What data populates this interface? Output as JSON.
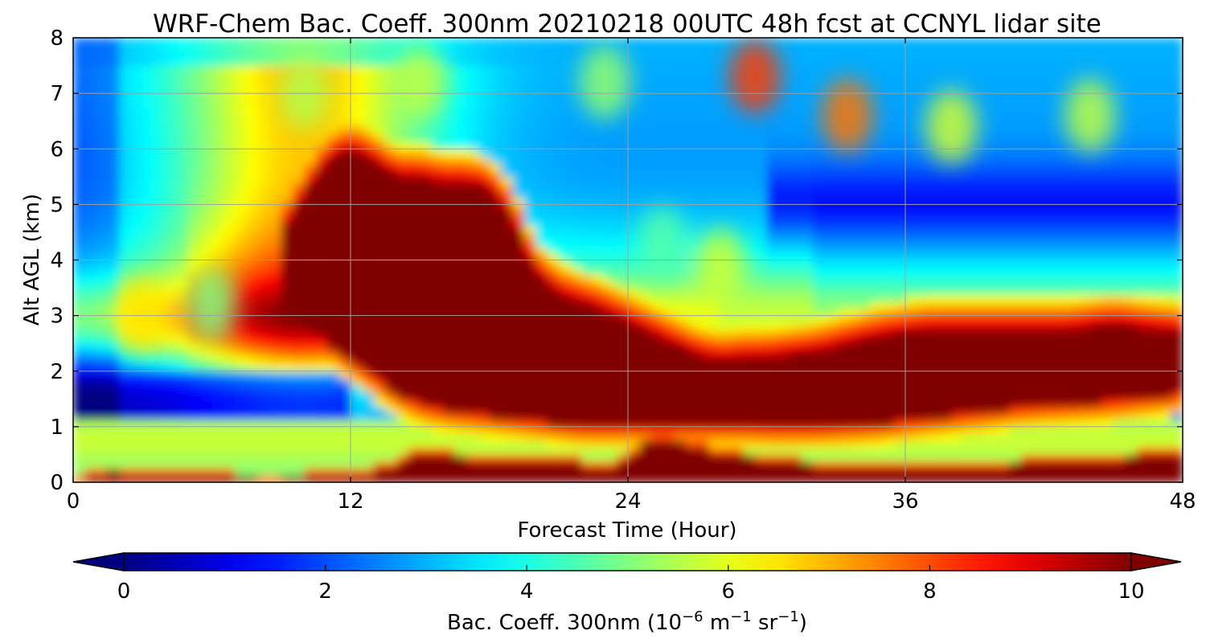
{
  "chart_data": {
    "type": "heatmap",
    "title": "WRF-Chem Bac. Coeff. 300nm  20210218 00UTC 48h fcst at CCNYL lidar site",
    "xlabel": "Forecast Time (Hour)",
    "ylabel": "Alt AGL (km)",
    "xlim": [
      0,
      48
    ],
    "ylim": [
      0,
      8
    ],
    "x_ticks": [
      "0",
      "12",
      "24",
      "36",
      "48"
    ],
    "y_ticks": [
      "0",
      "1",
      "2",
      "3",
      "4",
      "5",
      "6",
      "7",
      "8"
    ],
    "grid": true,
    "colormap": "jet",
    "colorbar": {
      "orientation": "horizontal",
      "placement": "bottom",
      "range": [
        0,
        10
      ],
      "extend": "both",
      "ticks": [
        "0",
        "2",
        "4",
        "6",
        "8",
        "10"
      ],
      "label_prefix": "Bac. Coeff. 300nm  (10",
      "label_exp1": "−6",
      "label_mid": " m",
      "label_exp2": "−1",
      "label_mid2": " sr",
      "label_exp3": "−1",
      "label_suffix": ")"
    },
    "features": {
      "sfc_x": [
        0,
        1,
        2,
        3,
        4,
        5,
        6,
        7,
        8,
        9,
        10,
        11,
        12,
        13,
        14,
        15,
        16,
        17,
        18,
        19,
        20,
        21,
        22,
        23,
        24,
        25,
        26,
        27,
        28,
        29,
        30,
        31,
        32,
        33,
        34,
        35,
        36,
        37,
        38,
        39,
        40,
        41,
        42,
        43,
        44,
        45,
        46,
        47,
        48
      ],
      "sfc_top": [
        0.02,
        0.15,
        0.2,
        0.12,
        0.1,
        0.09,
        0.08,
        0.07,
        0.06,
        0.06,
        0.07,
        0.08,
        0.1,
        0.18,
        0.35,
        0.55,
        0.55,
        0.4,
        0.42,
        0.42,
        0.4,
        0.38,
        0.3,
        0.28,
        0.35,
        0.8,
        0.72,
        0.6,
        0.5,
        0.45,
        0.4,
        0.35,
        0.3,
        0.28,
        0.25,
        0.24,
        0.24,
        0.25,
        0.26,
        0.28,
        0.3,
        0.32,
        0.35,
        0.38,
        0.4,
        0.42,
        0.45,
        0.5,
        0.55
      ],
      "plume_x": [
        9,
        10,
        11,
        12,
        13,
        14,
        15,
        16,
        17,
        18,
        19,
        20,
        21,
        22,
        23,
        24,
        25,
        26,
        27,
        28,
        29,
        30,
        31,
        32,
        33,
        34,
        35,
        36,
        37,
        38,
        39,
        40,
        41,
        42,
        43,
        44,
        45,
        46,
        47,
        48
      ],
      "plume_top": [
        4.5,
        5.2,
        5.8,
        6.0,
        5.8,
        5.5,
        5.5,
        5.4,
        5.4,
        5.3,
        4.8,
        3.8,
        3.4,
        3.25,
        3.1,
        2.9,
        2.7,
        2.5,
        2.3,
        2.2,
        2.25,
        2.25,
        2.3,
        2.35,
        2.45,
        2.55,
        2.65,
        2.7,
        2.75,
        2.75,
        2.75,
        2.75,
        2.75,
        2.75,
        2.75,
        2.8,
        2.85,
        2.8,
        2.75,
        2.7
      ],
      "plume_bot": [
        3.0,
        2.8,
        2.5,
        2.2,
        1.9,
        1.6,
        1.4,
        1.3,
        1.25,
        1.2,
        1.15,
        1.1,
        1.05,
        1.0,
        1.0,
        1.0,
        1.0,
        1.0,
        1.0,
        1.0,
        1.0,
        0.98,
        0.98,
        0.98,
        1.0,
        1.02,
        1.05,
        1.1,
        1.15,
        1.2,
        1.25,
        1.3,
        1.35,
        1.38,
        1.4,
        1.42,
        1.45,
        1.5,
        1.55,
        1.6
      ],
      "upper_blobs": [
        {
          "x": 29.5,
          "y": 7.3,
          "v": 8.2
        },
        {
          "x": 33.5,
          "y": 6.6,
          "v": 7.6
        },
        {
          "x": 38.0,
          "y": 6.4,
          "v": 5.8
        },
        {
          "x": 44.0,
          "y": 6.6,
          "v": 5.6
        },
        {
          "x": 23.0,
          "y": 7.2,
          "v": 5.2
        },
        {
          "x": 28.0,
          "y": 3.9,
          "v": 5.8
        },
        {
          "x": 25.5,
          "y": 4.3,
          "v": 4.6
        },
        {
          "x": 3.0,
          "y": 3.0,
          "v": 6.5
        },
        {
          "x": 6.0,
          "y": 3.2,
          "v": 5.0
        },
        {
          "x": 10.0,
          "y": 7.0,
          "v": 5.5
        },
        {
          "x": 15.0,
          "y": 7.2,
          "v": 5.6
        }
      ]
    }
  }
}
